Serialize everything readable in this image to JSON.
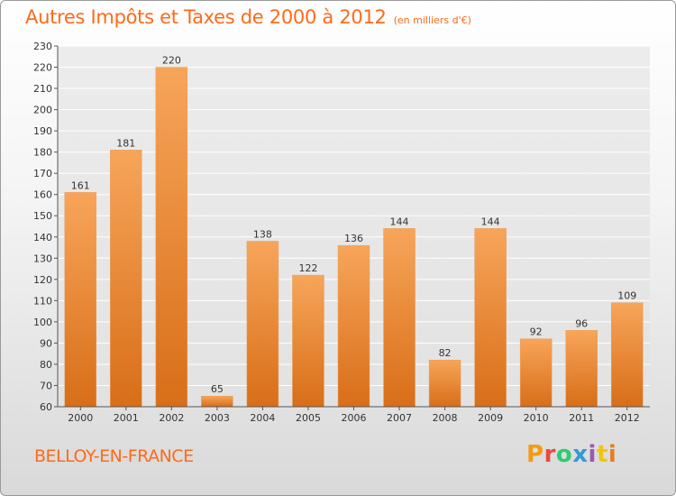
{
  "header": {
    "title": "Autres Impôts et Taxes de 2000 à 2012",
    "subtitle": "(en milliers d'€)"
  },
  "footer": {
    "commune": "BELLOY-EN-FRANCE",
    "logo": "Proxiti",
    "logo_colors": [
      "#f39c12",
      "#e74c3c",
      "#2ecc71",
      "#3498db",
      "#9b59b6",
      "#f1c40f",
      "#e67e22"
    ]
  },
  "chart_data": {
    "type": "bar",
    "title": "Autres Impôts et Taxes de 2000 à 2012",
    "subtitle": "(en milliers d'€)",
    "categories": [
      "2000",
      "2001",
      "2002",
      "2003",
      "2004",
      "2005",
      "2006",
      "2007",
      "2008",
      "2009",
      "2010",
      "2011",
      "2012"
    ],
    "values": [
      161,
      181,
      220,
      65,
      138,
      122,
      136,
      144,
      82,
      144,
      92,
      96,
      109
    ],
    "ylim": [
      60,
      230
    ],
    "yticks": [
      60,
      70,
      80,
      90,
      100,
      110,
      120,
      130,
      140,
      150,
      160,
      170,
      180,
      190,
      200,
      210,
      220,
      230
    ],
    "grid": true,
    "bar_color": "#f0892e",
    "bar_color_light": "#f7a55a",
    "bar_color_dark": "#d86e18"
  }
}
